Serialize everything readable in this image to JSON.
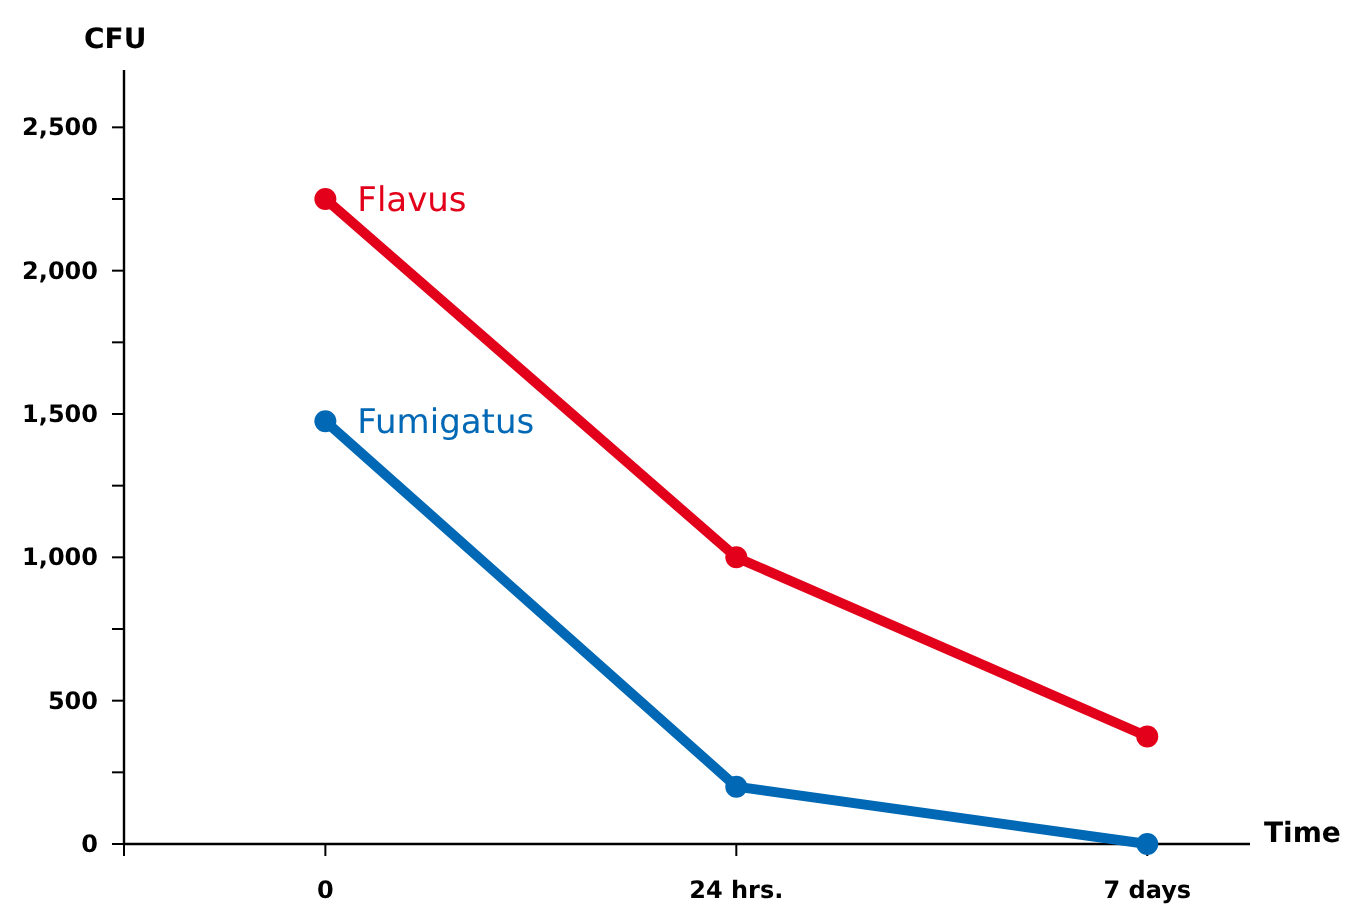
{
  "chart_data": {
    "type": "line",
    "xlabel": "Time",
    "ylabel": "CFU",
    "categories": [
      "0",
      "24 hrs.",
      "7 days"
    ],
    "series": [
      {
        "name": "Flavus",
        "color": "#e2001a",
        "values": [
          2250,
          1000,
          375
        ]
      },
      {
        "name": "Fumigatus",
        "color": "#0068b4",
        "values": [
          1475,
          200,
          0
        ]
      }
    ],
    "ylim": [
      0,
      2700
    ],
    "yticks": [
      0,
      {
        "value": 250,
        "label": null
      },
      {
        "value": 500,
        "label": "500"
      },
      {
        "value": 750,
        "label": null
      },
      {
        "value": 1000,
        "label": "1,000"
      },
      {
        "value": 1250,
        "label": null
      },
      {
        "value": 1500,
        "label": "1,500"
      },
      {
        "value": 1750,
        "label": null
      },
      {
        "value": 2000,
        "label": "2,000"
      },
      {
        "value": 2250,
        "label": null
      },
      {
        "value": 2500,
        "label": "2,500"
      }
    ],
    "marker": "circle",
    "line_style": "solid",
    "grid": false
  }
}
